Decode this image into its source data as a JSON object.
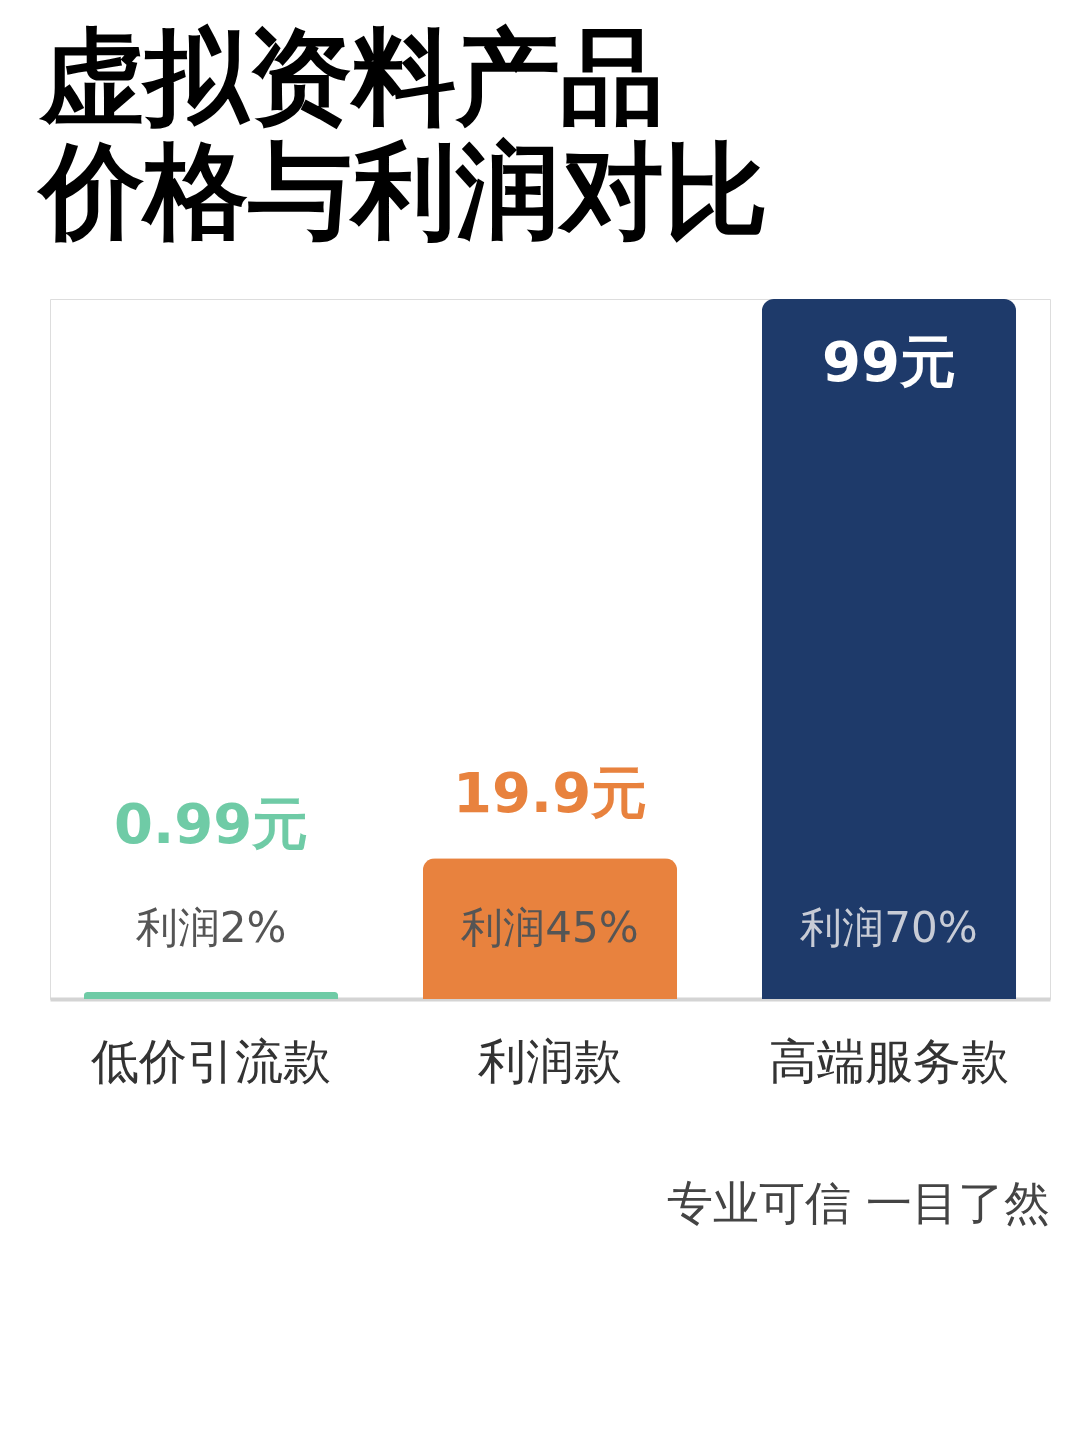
{
  "chart_data": {
    "type": "bar",
    "title": "虚拟资料产品价格与利润对比",
    "categories": [
      "低价引流款",
      "利润款",
      "高端服务款"
    ],
    "values": [
      0.99,
      19.9,
      99
    ],
    "colors": [
      "#6fcba6",
      "#e8823e",
      "#1e3a6a"
    ],
    "value_labels": [
      "0.99元",
      "19.9元",
      "99元"
    ],
    "annotations": [
      "利润2%",
      "利润45%",
      "利润70%",
      "专业可信 一目了然"
    ],
    "grid": false
  }
}
